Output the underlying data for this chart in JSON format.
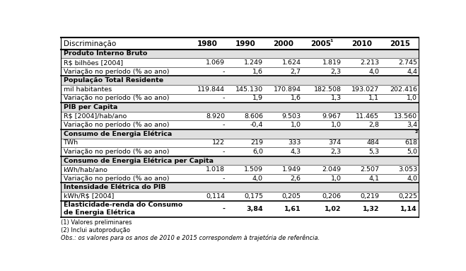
{
  "columns": [
    "Discriminação",
    "1980",
    "1990",
    "2000",
    "2005(1)",
    "2010",
    "2015"
  ],
  "col_weights": [
    2.85,
    0.85,
    0.85,
    0.85,
    0.9,
    0.85,
    0.85
  ],
  "rows": [
    {
      "label": "Produto Interno Bruto",
      "bold": true,
      "section_header": true,
      "multiline": false,
      "values": [
        "",
        "",
        "",
        "",
        "",
        ""
      ]
    },
    {
      "label": "R$ bilhões [2004]",
      "bold": false,
      "section_header": false,
      "multiline": false,
      "values": [
        "1.069",
        "1.249",
        "1.624",
        "1.819",
        "2.213",
        "2.745"
      ]
    },
    {
      "label": "Variação no período (% ao ano)",
      "bold": false,
      "section_header": false,
      "multiline": false,
      "values": [
        "-",
        "1,6",
        "2,7",
        "2,3",
        "4,0",
        "4,4"
      ]
    },
    {
      "label": "População Total Residente",
      "bold": true,
      "section_header": true,
      "multiline": false,
      "values": [
        "",
        "",
        "",
        "",
        "",
        ""
      ]
    },
    {
      "label": "mil habitantes",
      "bold": false,
      "section_header": false,
      "multiline": false,
      "values": [
        "119.844",
        "145.130",
        "170.894",
        "182.508",
        "193.027",
        "202.416"
      ]
    },
    {
      "label": "Variação no período (% ao ano)",
      "bold": false,
      "section_header": false,
      "multiline": false,
      "values": [
        "-",
        "1,9",
        "1,6",
        "1,3",
        "1,1",
        "1,0"
      ]
    },
    {
      "label": "PIB per Capita",
      "bold": true,
      "section_header": true,
      "multiline": false,
      "values": [
        "",
        "",
        "",
        "",
        "",
        ""
      ]
    },
    {
      "label": "R$ [2004]/hab/ano",
      "bold": false,
      "section_header": false,
      "multiline": false,
      "values": [
        "8.920",
        "8.606",
        "9.503",
        "9.967",
        "11.465",
        "13.560"
      ]
    },
    {
      "label": "Variação no período (% ao ano)",
      "bold": false,
      "section_header": false,
      "multiline": false,
      "values": [
        "-",
        "-0,4",
        "1,0",
        "1,0",
        "2,8",
        "3,4"
      ]
    },
    {
      "label": "Consumo de Energia Elétrica",
      "label_sup": "(2)",
      "bold": true,
      "section_header": true,
      "multiline": false,
      "values": [
        "",
        "",
        "",
        "",
        "",
        ""
      ]
    },
    {
      "label": "TWh",
      "bold": false,
      "section_header": false,
      "multiline": false,
      "values": [
        "122",
        "219",
        "333",
        "374",
        "484",
        "618"
      ]
    },
    {
      "label": "Variação no período (% ao ano)",
      "bold": false,
      "section_header": false,
      "multiline": false,
      "values": [
        "-",
        "6,0",
        "4,3",
        "2,3",
        "5,3",
        "5,0"
      ]
    },
    {
      "label": "Consumo de Energia Elétrica per Capita",
      "bold": true,
      "section_header": true,
      "multiline": false,
      "values": [
        "",
        "",
        "",
        "",
        "",
        ""
      ]
    },
    {
      "label": "kWh/hab/ano",
      "bold": false,
      "section_header": false,
      "multiline": false,
      "values": [
        "1.018",
        "1.509",
        "1.949",
        "2.049",
        "2.507",
        "3.053"
      ]
    },
    {
      "label": "Variação no período (% ao ano)",
      "bold": false,
      "section_header": false,
      "multiline": false,
      "values": [
        "-",
        "4,0",
        "2,6",
        "1,0",
        "4,1",
        "4,0"
      ]
    },
    {
      "label": "Intensidade Elétrica do PIB",
      "bold": true,
      "section_header": true,
      "multiline": false,
      "values": [
        "",
        "",
        "",
        "",
        "",
        ""
      ]
    },
    {
      "label": "kWh/R$ [2004]",
      "bold": false,
      "section_header": false,
      "multiline": false,
      "values": [
        "0,114",
        "0,175",
        "0,205",
        "0,206",
        "0,219",
        "0,225"
      ]
    },
    {
      "label": "Elasticidade-renda do Consumo\nde Energia Elétrica",
      "bold": true,
      "section_header": false,
      "multiline": true,
      "values": [
        "-",
        "3,84",
        "1,61",
        "1,02",
        "1,32",
        "1,14"
      ]
    }
  ],
  "footnotes": [
    "(1) Valores preliminares",
    "(2) Inclui autoprodução",
    "Obs.: os valores para os anos de 2010 e 2015 correspondem à trajetória de referência."
  ],
  "section_bg": "#e0e0e0",
  "row_bg_normal": "#ffffff",
  "header_bg": "#ffffff",
  "border_color": "#000000",
  "text_color": "#000000",
  "font_size": 6.8,
  "header_font_size": 7.5
}
